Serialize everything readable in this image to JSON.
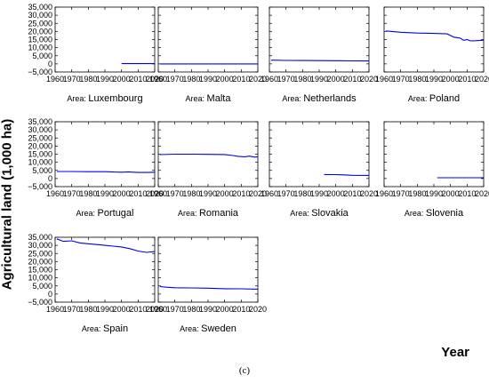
{
  "figure": {
    "ylabel": "Agricultural land (1,000 ha)",
    "xlabel": "Year",
    "caption": "(c)",
    "area_prefix": "Area:"
  },
  "chart_data": [
    {
      "type": "line",
      "area": "Luxembourg",
      "x": [
        2000,
        2020
      ],
      "series": [
        {
          "values": [
            130,
            130
          ]
        }
      ],
      "ylim": [
        -5000,
        35000
      ],
      "xlim": [
        1960,
        2020
      ]
    },
    {
      "type": "line",
      "area": "Malta",
      "x": [
        1961,
        2020
      ],
      "series": [
        {
          "values": [
            13,
            11
          ]
        }
      ],
      "ylim": [
        -5000,
        35000
      ],
      "xlim": [
        1960,
        2020
      ]
    },
    {
      "type": "line",
      "area": "Netherlands",
      "x": [
        1961,
        1970,
        1980,
        1990,
        2000,
        2010,
        2020
      ],
      "series": [
        {
          "values": [
            2300,
            2150,
            2050,
            2000,
            1950,
            1850,
            1800
          ]
        }
      ],
      "ylim": [
        -5000,
        35000
      ],
      "xlim": [
        1960,
        2020
      ]
    },
    {
      "type": "line",
      "area": "Poland",
      "x": [
        1961,
        1970,
        1980,
        1990,
        1998,
        2002,
        2004,
        2006,
        2008,
        2010,
        2012,
        2015,
        2020
      ],
      "series": [
        {
          "values": [
            20300,
            19500,
            19000,
            18800,
            18500,
            16500,
            16200,
            15800,
            14500,
            15000,
            14200,
            14300,
            14600
          ]
        }
      ],
      "ylim": [
        -5000,
        35000
      ],
      "xlim": [
        1960,
        2020
      ]
    },
    {
      "type": "line",
      "area": "Portugal",
      "x": [
        1961,
        1970,
        1980,
        1990,
        2000,
        2004,
        2010,
        2015,
        2020
      ],
      "series": [
        {
          "values": [
            4300,
            4300,
            4200,
            4200,
            3900,
            4100,
            3700,
            3700,
            3900
          ]
        }
      ],
      "ylim": [
        -5000,
        35000
      ],
      "xlim": [
        1960,
        2020
      ]
    },
    {
      "type": "line",
      "area": "Romania",
      "x": [
        1961,
        1970,
        1980,
        1990,
        2000,
        2005,
        2008,
        2012,
        2015,
        2018,
        2020
      ],
      "series": [
        {
          "values": [
            14700,
            15000,
            15000,
            14900,
            14800,
            14200,
            13700,
            13400,
            13800,
            13200,
            13400
          ]
        }
      ],
      "ylim": [
        -5000,
        35000
      ],
      "xlim": [
        1960,
        2020
      ]
    },
    {
      "type": "line",
      "area": "Slovakia",
      "x": [
        1993,
        2000,
        2005,
        2010,
        2020
      ],
      "series": [
        {
          "values": [
            2450,
            2400,
            2250,
            1950,
            1900
          ]
        }
      ],
      "ylim": [
        -5000,
        35000
      ],
      "xlim": [
        1960,
        2020
      ]
    },
    {
      "type": "line",
      "area": "Slovenia",
      "x": [
        1992,
        2000,
        2010,
        2020
      ],
      "series": [
        {
          "values": [
            500,
            500,
            480,
            470
          ]
        }
      ],
      "ylim": [
        -5000,
        35000
      ],
      "xlim": [
        1960,
        2020
      ]
    },
    {
      "type": "line",
      "area": "Spain",
      "x": [
        1961,
        1965,
        1970,
        1975,
        1980,
        1985,
        1990,
        1995,
        2000,
        2005,
        2010,
        2015,
        2020
      ],
      "series": [
        {
          "values": [
            34000,
            32500,
            32800,
            31500,
            31000,
            30500,
            30000,
            29500,
            29000,
            28000,
            26500,
            25700,
            26200
          ]
        }
      ],
      "ylim": [
        -5000,
        35000
      ],
      "xlim": [
        1960,
        2020
      ]
    },
    {
      "type": "line",
      "area": "Sweden",
      "x": [
        1961,
        1965,
        1970,
        1980,
        1990,
        2000,
        2010,
        2020
      ],
      "series": [
        {
          "values": [
            4600,
            4200,
            3900,
            3750,
            3600,
            3300,
            3200,
            3000
          ]
        }
      ],
      "ylim": [
        -5000,
        35000
      ],
      "xlim": [
        1960,
        2020
      ]
    }
  ],
  "y_ticks": [
    "35,000",
    "30,000",
    "25,000",
    "20,000",
    "15,000",
    "10,000",
    "5,000",
    "0",
    "−5,000"
  ],
  "y_tick_values": [
    35000,
    30000,
    25000,
    20000,
    15000,
    10000,
    5000,
    0,
    -5000
  ],
  "x_ticks": [
    "1960",
    "1970",
    "1980",
    "1990",
    "2000",
    "2010",
    "2020"
  ],
  "x_tick_values": [
    1960,
    1970,
    1980,
    1990,
    2000,
    2010,
    2020
  ],
  "style": {
    "line_color": "#0000ee",
    "frame_color": "#000000"
  }
}
